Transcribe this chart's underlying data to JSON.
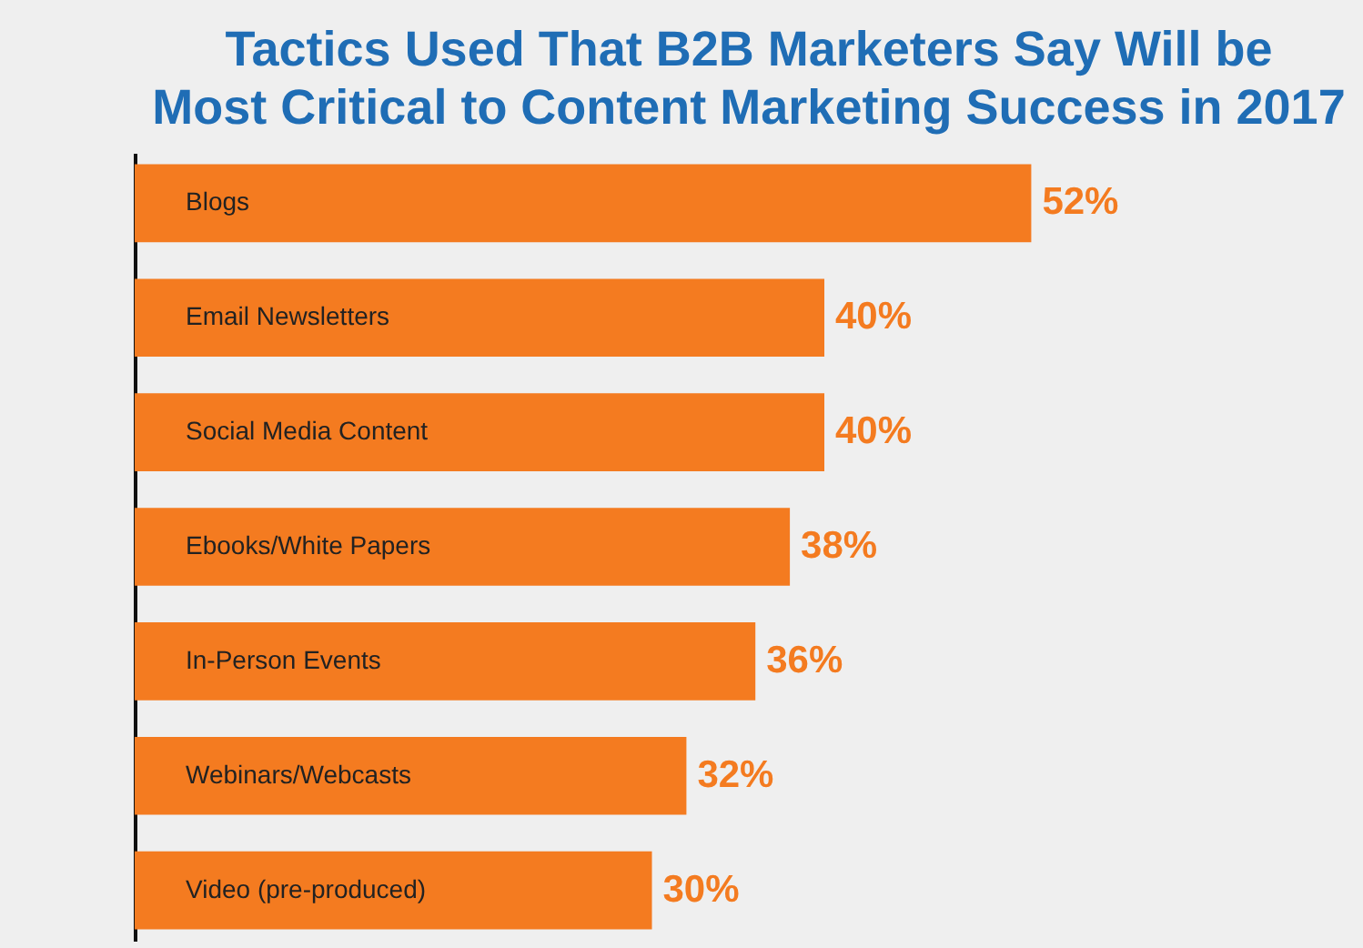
{
  "chart_data": {
    "type": "bar",
    "orientation": "horizontal",
    "title": [
      "Tactics Used That B2B Marketers Say Will be",
      "Most Critical to Content Marketing Success in 2017"
    ],
    "categories": [
      "Blogs",
      "Email Newsletters",
      "Social Media Content",
      "Ebooks/White Papers",
      "In-Person Events",
      "Webinars/Webcasts",
      "Video (pre-produced)"
    ],
    "values": [
      52,
      40,
      40,
      38,
      36,
      32,
      30
    ],
    "value_labels": [
      "52%",
      "40%",
      "40%",
      "38%",
      "36%",
      "32%",
      "30%"
    ],
    "color": "#f47b20"
  }
}
